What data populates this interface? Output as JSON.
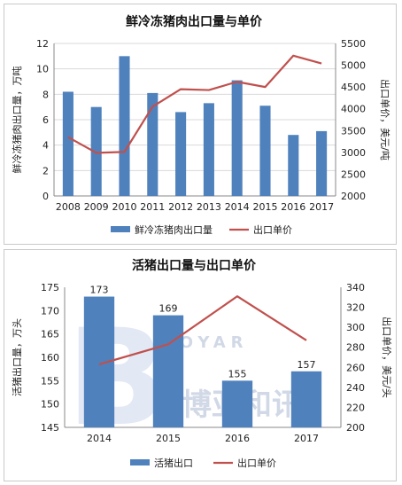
{
  "chart_data": [
    {
      "type": "bar+line",
      "title": "鲜冷冻猪肉出口量与单价",
      "ylabel": "鲜冷冻猪肉出口量，万吨",
      "y2label": "出口单价，美元/吨",
      "categories": [
        "2008",
        "2009",
        "2010",
        "2011",
        "2012",
        "2013",
        "2014",
        "2015",
        "2016",
        "2017"
      ],
      "ylim": [
        0,
        12
      ],
      "yticks": [
        "0",
        "2",
        "4",
        "6",
        "8",
        "10",
        "12"
      ],
      "y2lim": [
        2000,
        5500
      ],
      "y2ticks": [
        "2000",
        "2500",
        "3000",
        "3500",
        "4000",
        "4500",
        "5000",
        "5500"
      ],
      "grid": true,
      "legend_position": "bottom",
      "series": [
        {
          "name": "鲜冷冻猪肉出口量",
          "kind": "bar",
          "axis": "left",
          "color": "#4f81bd",
          "values": [
            8.2,
            7.0,
            11.0,
            8.1,
            6.6,
            7.3,
            9.1,
            7.1,
            4.8,
            5.1
          ]
        },
        {
          "name": "出口单价",
          "kind": "line",
          "axis": "right",
          "color": "#c0504d",
          "values": [
            3350,
            2990,
            3010,
            4050,
            4450,
            4430,
            4620,
            4500,
            5220,
            5040
          ]
        }
      ]
    },
    {
      "type": "bar+line",
      "title": "活猪出口量与出口单价",
      "ylabel": "活猪出口量，万头",
      "y2label": "出口单价，美元/头",
      "categories": [
        "2014",
        "2015",
        "2016",
        "2017"
      ],
      "ylim": [
        145,
        175
      ],
      "yticks": [
        "145",
        "150",
        "155",
        "160",
        "165",
        "170",
        "175"
      ],
      "y2lim": [
        200,
        340
      ],
      "y2ticks": [
        "200",
        "220",
        "240",
        "260",
        "280",
        "300",
        "320",
        "340"
      ],
      "grid": false,
      "legend_position": "bottom",
      "series": [
        {
          "name": "活猪出口",
          "kind": "bar",
          "axis": "left",
          "color": "#4f81bd",
          "values": [
            173,
            169,
            155,
            157
          ],
          "data_labels": [
            "173",
            "169",
            "155",
            "157"
          ]
        },
        {
          "name": "出口单价",
          "kind": "line",
          "axis": "right",
          "color": "#c0504d",
          "values": [
            263,
            283,
            331,
            287
          ]
        }
      ]
    }
  ],
  "watermark": {
    "text": "博亚和讯",
    "latin": "BOYAR",
    "initial": "B"
  }
}
